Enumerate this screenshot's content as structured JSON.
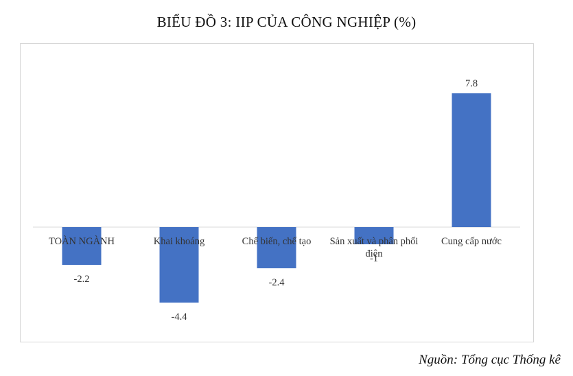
{
  "chart_data": {
    "type": "bar",
    "title": "BIỂU ĐỒ 3: IIP CỦA CÔNG NGHIỆP (%)",
    "categories": [
      [
        "TOÀN NGÀNH"
      ],
      [
        "Khai khoáng"
      ],
      [
        "Chế biến, chế tạo"
      ],
      [
        "Sản xuất và phân phối",
        "điện"
      ],
      [
        "Cung cấp nước"
      ]
    ],
    "values": [
      -2.2,
      -4.4,
      -2.4,
      -1,
      7.8
    ],
    "value_labels": [
      "-2.2",
      "-4.4",
      "-2.4",
      "-1",
      "7.8"
    ],
    "ylim": [
      -5,
      10
    ],
    "grid": false,
    "bar_color": "#4472C4",
    "axis_color": "#d9d9d9"
  },
  "source": "Nguồn: Tổng cục Thống kê"
}
